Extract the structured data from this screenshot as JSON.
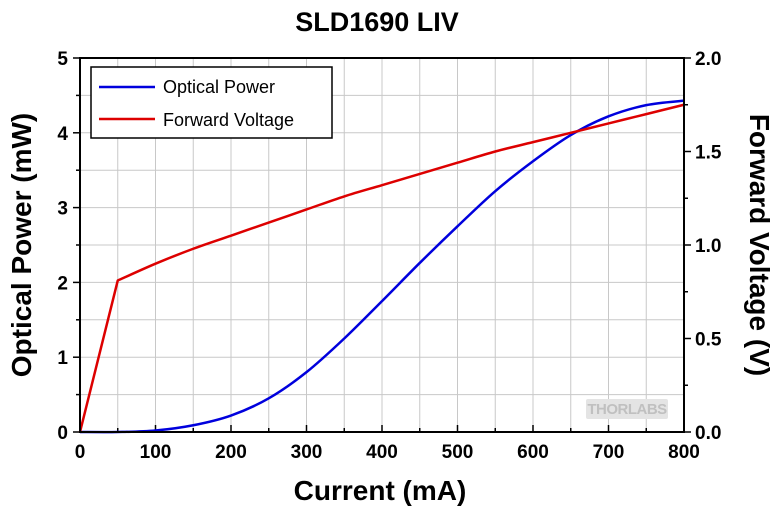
{
  "chart_data": {
    "type": "line",
    "title": "SLD1690 LIV",
    "xlabel": "Current (mA)",
    "ylabel": "Optical Power (mW)",
    "y2label": "Forward Voltage (V)",
    "xlim": [
      0,
      800
    ],
    "ylim": [
      0,
      5
    ],
    "y2lim": [
      0,
      2
    ],
    "x_ticks": [
      "0",
      "100",
      "200",
      "300",
      "400",
      "500",
      "600",
      "700",
      "800"
    ],
    "y_ticks": [
      "0",
      "1",
      "2",
      "3",
      "4",
      "5"
    ],
    "y2_ticks": [
      "0.0",
      "0.5",
      "1.0",
      "1.5",
      "2.0"
    ],
    "grid": true,
    "legend_position": "top-left",
    "series": [
      {
        "name": "Optical Power",
        "axis": "left",
        "color": "#0000dd",
        "x": [
          0,
          50,
          100,
          150,
          200,
          250,
          300,
          350,
          400,
          450,
          500,
          550,
          600,
          650,
          700,
          750,
          800
        ],
        "y": [
          0,
          0,
          0.02,
          0.09,
          0.22,
          0.45,
          0.8,
          1.25,
          1.75,
          2.26,
          2.75,
          3.22,
          3.62,
          3.97,
          4.22,
          4.37,
          4.43
        ]
      },
      {
        "name": "Forward Voltage",
        "axis": "right",
        "color": "#dd0000",
        "x": [
          0,
          50,
          100,
          150,
          200,
          250,
          300,
          350,
          400,
          450,
          500,
          550,
          600,
          650,
          700,
          750,
          800
        ],
        "y": [
          0,
          0.81,
          0.9,
          0.98,
          1.05,
          1.12,
          1.19,
          1.26,
          1.32,
          1.38,
          1.44,
          1.5,
          1.55,
          1.6,
          1.65,
          1.7,
          1.75
        ]
      }
    ]
  },
  "watermark": "THORLABS"
}
